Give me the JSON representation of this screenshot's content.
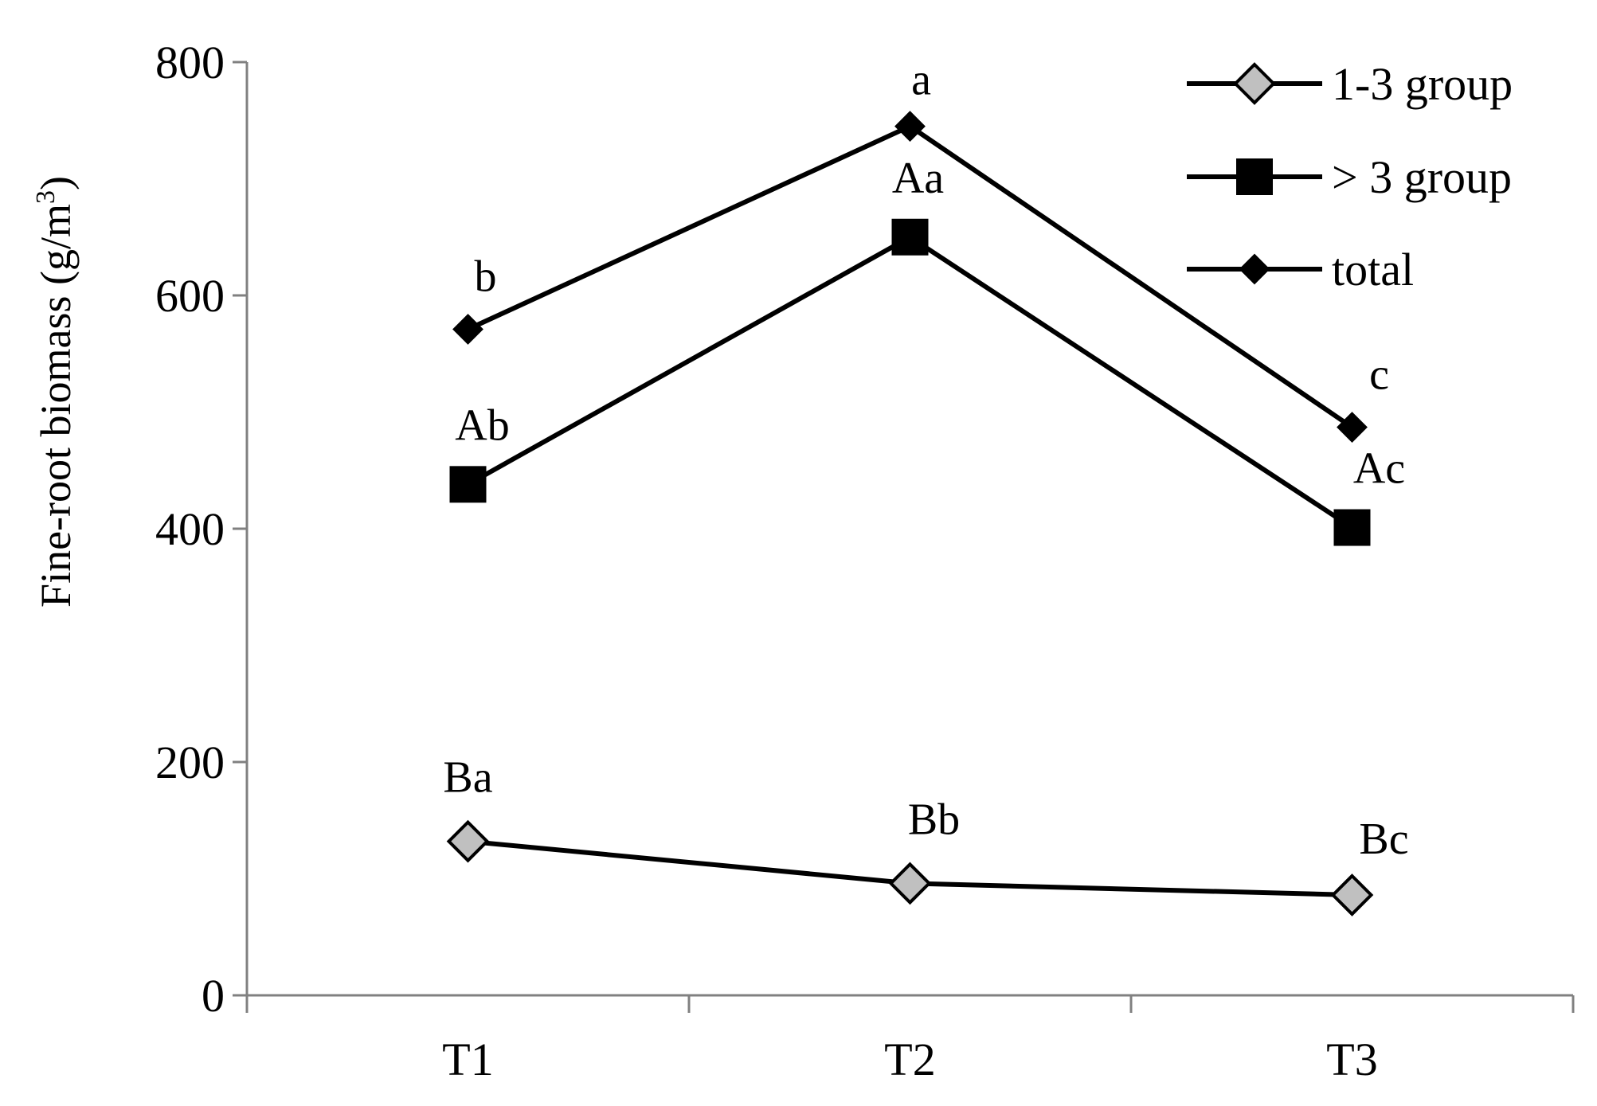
{
  "chart_data": {
    "type": "line",
    "title": "",
    "xlabel": "",
    "ylabel": "Fine-root biomass (g/m",
    "ylabel_superscript": "3",
    "ylabel_close": ")",
    "categories": [
      "T1",
      "T2",
      "T3"
    ],
    "ylim": [
      0,
      800
    ],
    "yticks": [
      "0",
      "200",
      "400",
      "600",
      "800"
    ],
    "grid": false,
    "legend": {
      "placement": "top-right"
    },
    "series": [
      {
        "name": "1-3 group",
        "values": [
          132,
          96,
          86
        ],
        "marker": "diamond",
        "marker_fill": "#c0c0c0",
        "line_color": "#000000",
        "labels": [
          "Ba",
          "Bb",
          "Bc"
        ]
      },
      {
        "name": "> 3 group",
        "values": [
          438,
          650,
          401
        ],
        "marker": "square",
        "marker_fill": "#000000",
        "line_color": "#000000",
        "labels": [
          "Ab",
          "Aa",
          "Ac"
        ]
      },
      {
        "name": "total",
        "values": [
          571,
          745,
          487
        ],
        "marker": "diamond-small",
        "marker_fill": "#000000",
        "line_color": "#000000",
        "labels": [
          "b",
          "a",
          "c"
        ]
      }
    ],
    "colors": {
      "axis": "#808080",
      "line": "#000000"
    }
  }
}
